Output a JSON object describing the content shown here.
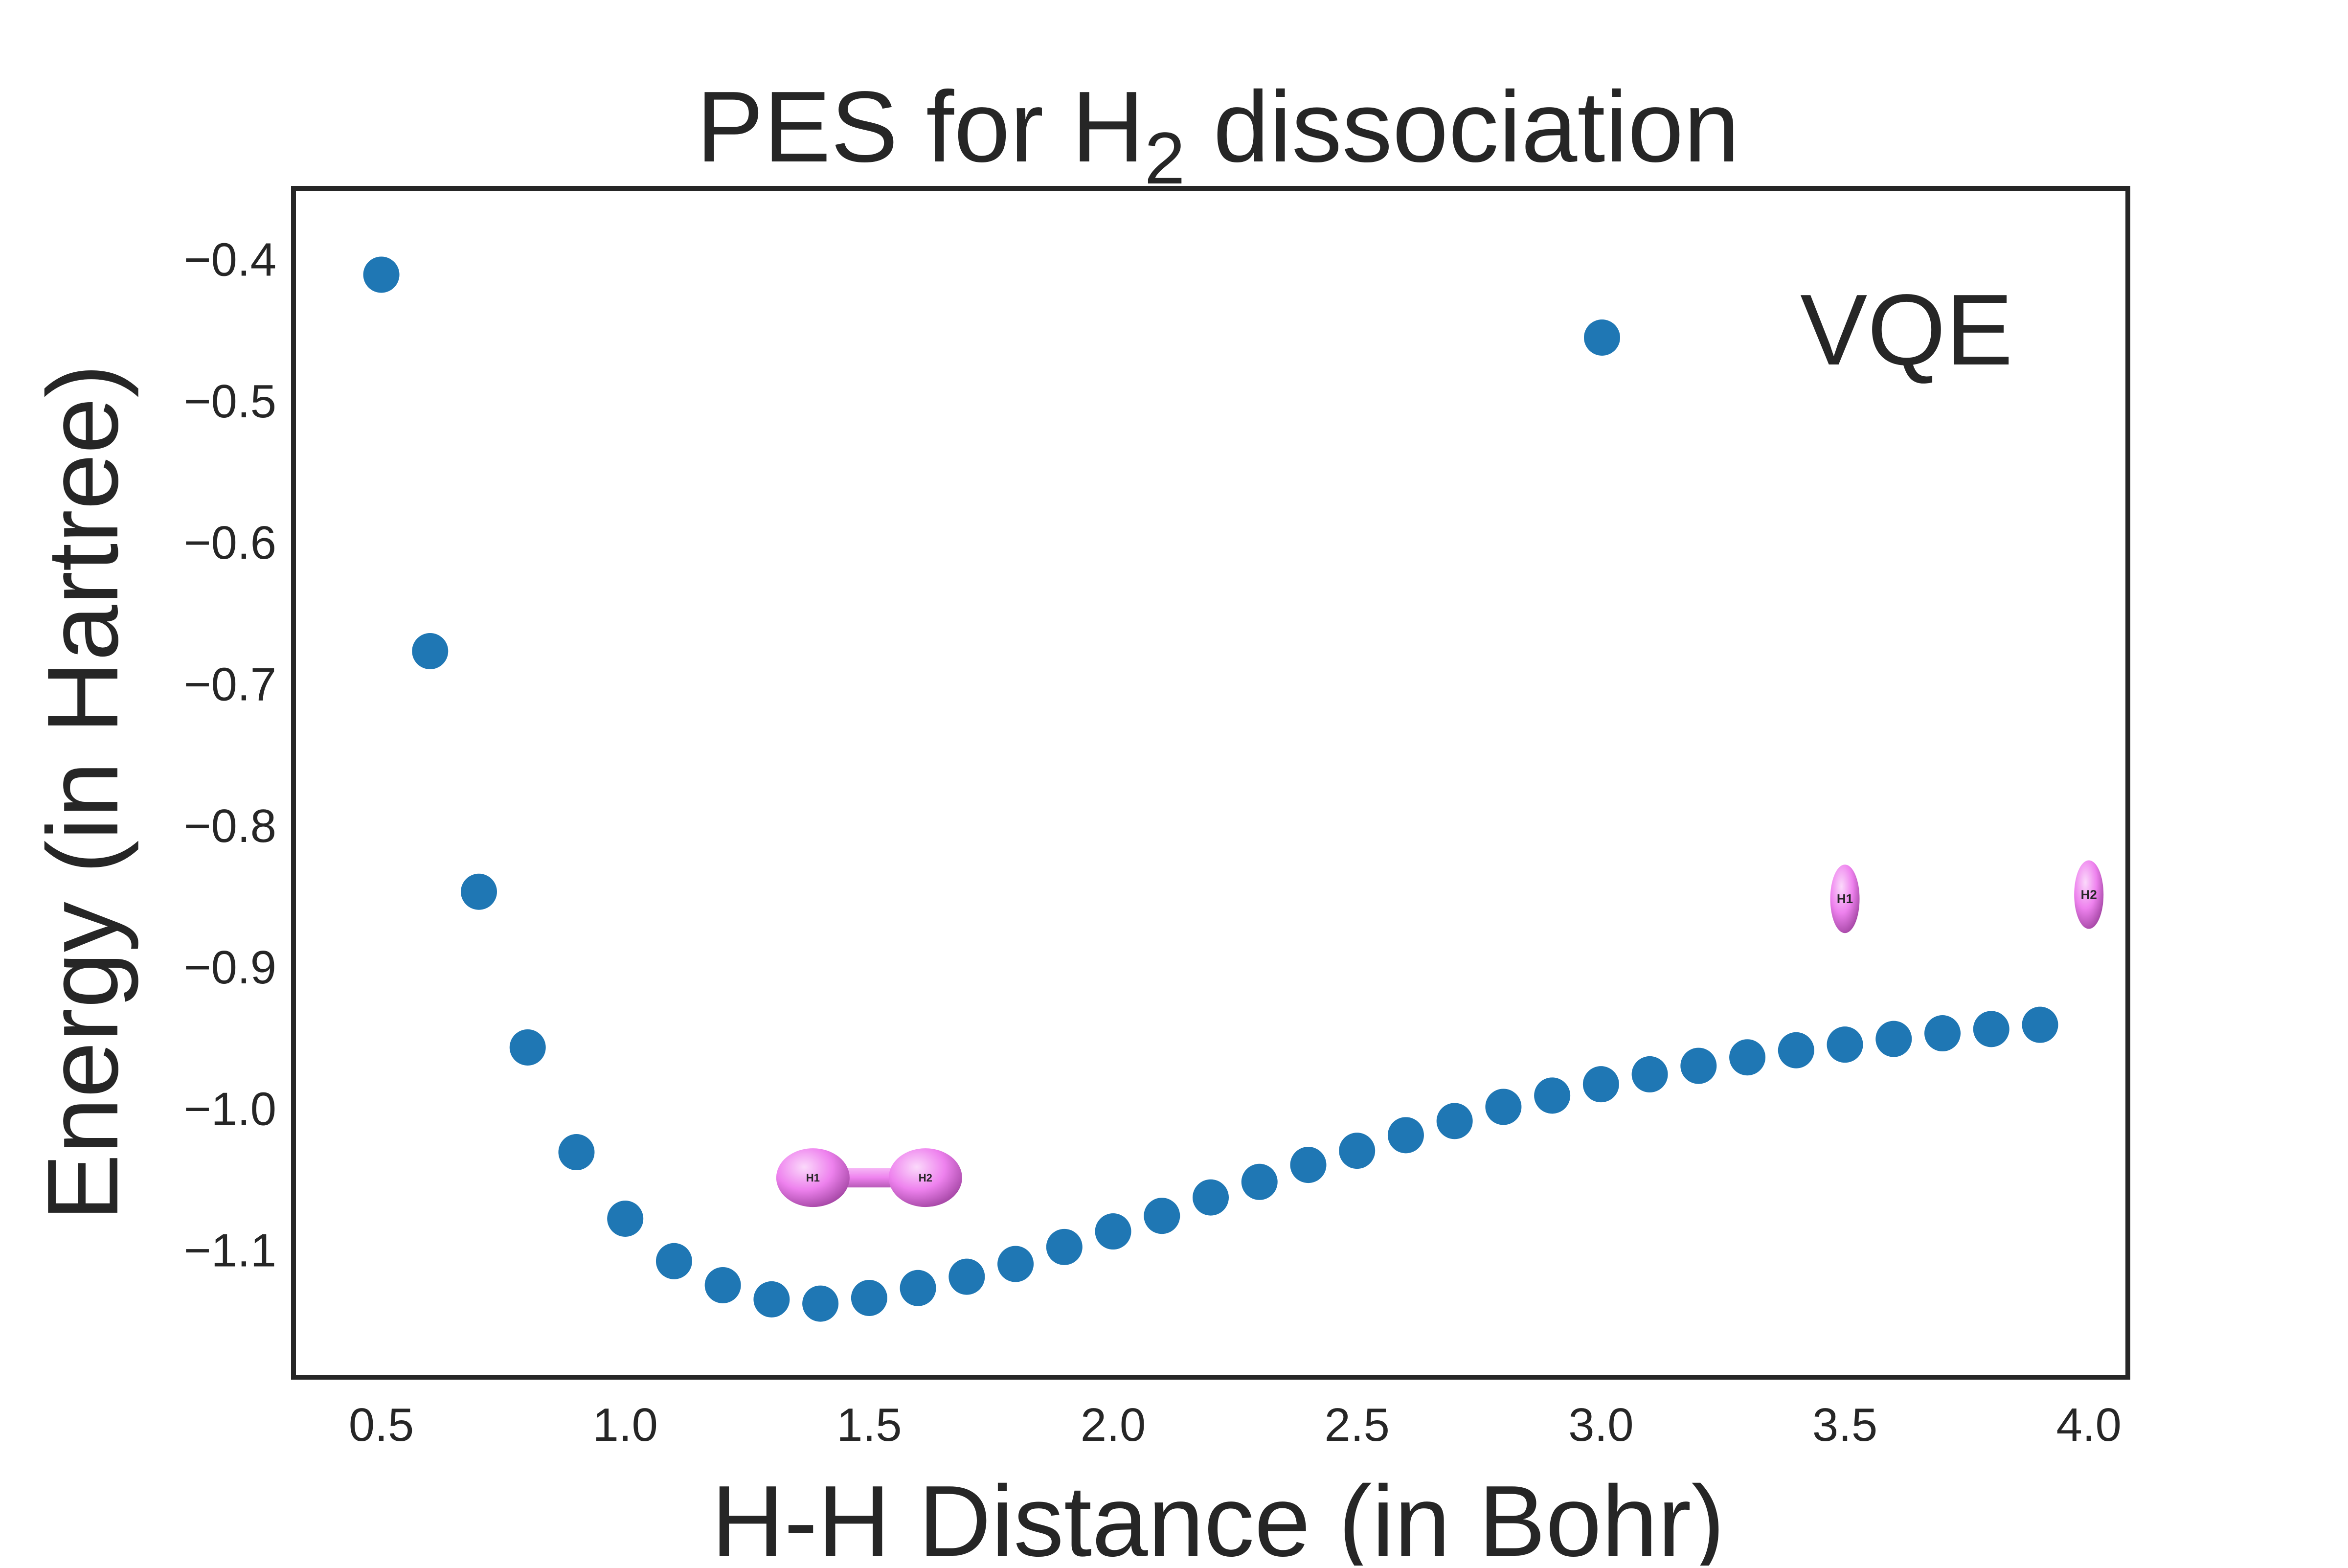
{
  "colors": {
    "series": "#1f77b4",
    "frame": "#262626",
    "molecule": "#ee82ee"
  },
  "chart_data": {
    "type": "scatter",
    "title": {
      "main": "PES for H",
      "sub": "2",
      "rest": " dissociation"
    },
    "xlabel": "H-H Distance (in Bohr)",
    "ylabel": "Energy (in Hartree)",
    "xlim": [
      0.32,
      4.08
    ],
    "ylim": [
      -1.19,
      -0.35
    ],
    "xticks": [
      {
        "v": 0.5,
        "label": "0.5"
      },
      {
        "v": 1.0,
        "label": "1.0"
      },
      {
        "v": 1.5,
        "label": "1.5"
      },
      {
        "v": 2.0,
        "label": "2.0"
      },
      {
        "v": 2.5,
        "label": "2.5"
      },
      {
        "v": 3.0,
        "label": "3.0"
      },
      {
        "v": 3.5,
        "label": "3.5"
      },
      {
        "v": 4.0,
        "label": "4.0"
      }
    ],
    "yticks": [
      {
        "v": -0.4,
        "label": "−0.4"
      },
      {
        "v": -0.5,
        "label": "−0.5"
      },
      {
        "v": -0.6,
        "label": "−0.6"
      },
      {
        "v": -0.7,
        "label": "−0.7"
      },
      {
        "v": -0.8,
        "label": "−0.8"
      },
      {
        "v": -0.9,
        "label": "−0.9"
      },
      {
        "v": -1.0,
        "label": "−1.0"
      },
      {
        "v": -1.1,
        "label": "−1.1"
      }
    ],
    "grid": false,
    "legend": {
      "position": "top-right",
      "entries": [
        "VQE"
      ]
    },
    "series": [
      {
        "name": "VQE",
        "x": [
          0.5,
          0.6,
          0.7,
          0.8,
          0.9,
          1.0,
          1.1,
          1.2,
          1.3,
          1.4,
          1.5,
          1.6,
          1.7,
          1.8,
          1.9,
          2.0,
          2.1,
          2.2,
          2.3,
          2.4,
          2.5,
          2.6,
          2.7,
          2.8,
          2.9,
          3.0,
          3.1,
          3.2,
          3.3,
          3.4,
          3.5,
          3.6,
          3.7,
          3.8,
          3.9
        ],
        "y": [
          -0.411,
          -0.677,
          -0.847,
          -0.957,
          -1.031,
          -1.078,
          -1.108,
          -1.125,
          -1.135,
          -1.138,
          -1.134,
          -1.127,
          -1.119,
          -1.11,
          -1.098,
          -1.087,
          -1.076,
          -1.063,
          -1.052,
          -1.04,
          -1.03,
          -1.019,
          -1.009,
          -0.999,
          -0.991,
          -0.983,
          -0.976,
          -0.97,
          -0.964,
          -0.959,
          -0.955,
          -0.951,
          -0.947,
          -0.944,
          -0.941
        ]
      }
    ],
    "annotations": {
      "bonded_molecule": {
        "atom1": "H1",
        "atom2": "H2",
        "x": 1.5,
        "y": -1.049
      },
      "separated_atoms": [
        {
          "label": "H1",
          "x": 3.5,
          "y": -0.852
        },
        {
          "label": "H2",
          "x": 4.0,
          "y": -0.849
        }
      ]
    }
  }
}
